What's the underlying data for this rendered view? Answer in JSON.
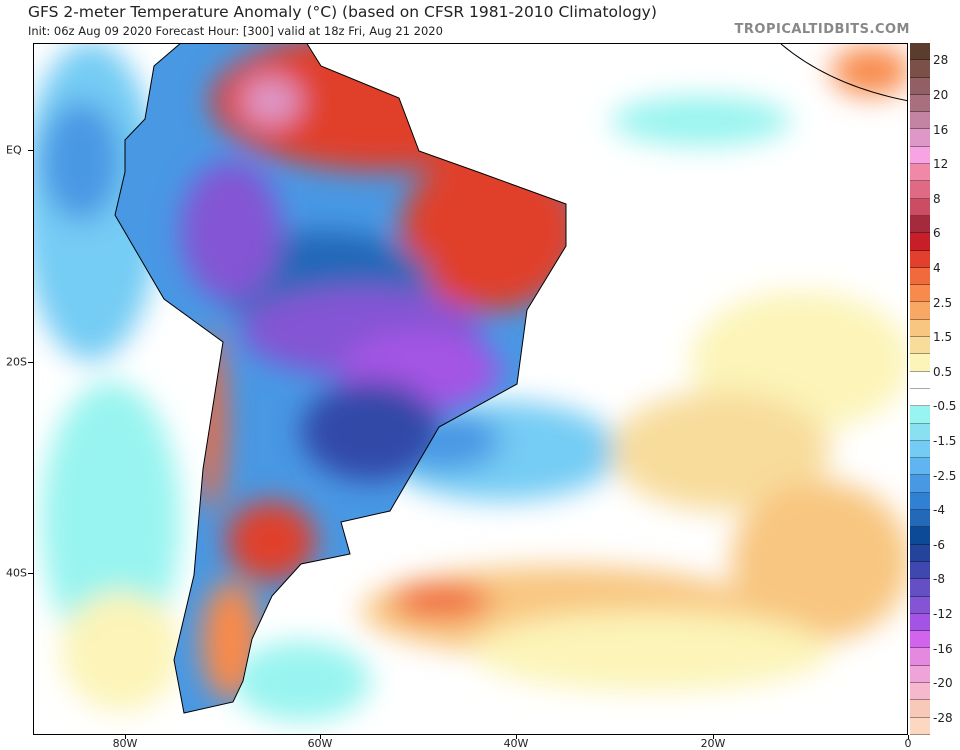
{
  "header": {
    "title": "GFS 2-meter Temperature Anomaly (°C) (based on CFSR 1981-2010 Climatology)",
    "subtitle": "Init: 06z Aug 09 2020   Forecast Hour: [300]   valid at 18z Fri, Aug 21 2020",
    "watermark": "TROPICALTIDBITS.COM"
  },
  "axes": {
    "lat_labels": [
      "EQ",
      "20S",
      "40S"
    ],
    "lon_labels": [
      "80W",
      "60W",
      "40W",
      "20W",
      "0"
    ]
  },
  "colorbar": {
    "labels": [
      "28",
      "20",
      "16",
      "12",
      "8",
      "6",
      "4",
      "2.5",
      "1.5",
      "0.5",
      "-0.5",
      "-1.5",
      "-2.5",
      "-4",
      "-6",
      "-8",
      "-12",
      "-16",
      "-20",
      "-28"
    ],
    "colors": [
      "#5c3c2c",
      "#7a5048",
      "#926064",
      "#a8707e",
      "#c384a4",
      "#de98c8",
      "#f8a4e4",
      "#f088a8",
      "#e06a84",
      "#cc4c64",
      "#a42a3c",
      "#c81e28",
      "#e0402c",
      "#f06a3c",
      "#f88a4c",
      "#f8a864",
      "#f8c680",
      "#f8dc9c",
      "#fcf4b8",
      "#ffffff",
      "#ffffff",
      "#98f4f0",
      "#88e0f0",
      "#74ccf4",
      "#60b4f0",
      "#4898e4",
      "#3080d4",
      "#2468b8",
      "#0c4a98",
      "#24449c",
      "#4048b0",
      "#6450c4",
      "#8454d4",
      "#a454e4",
      "#d064ec",
      "#e488e0",
      "#eea4d8",
      "#f6b8cc",
      "#f8c8b8",
      "#fcd8c0"
    ]
  }
}
